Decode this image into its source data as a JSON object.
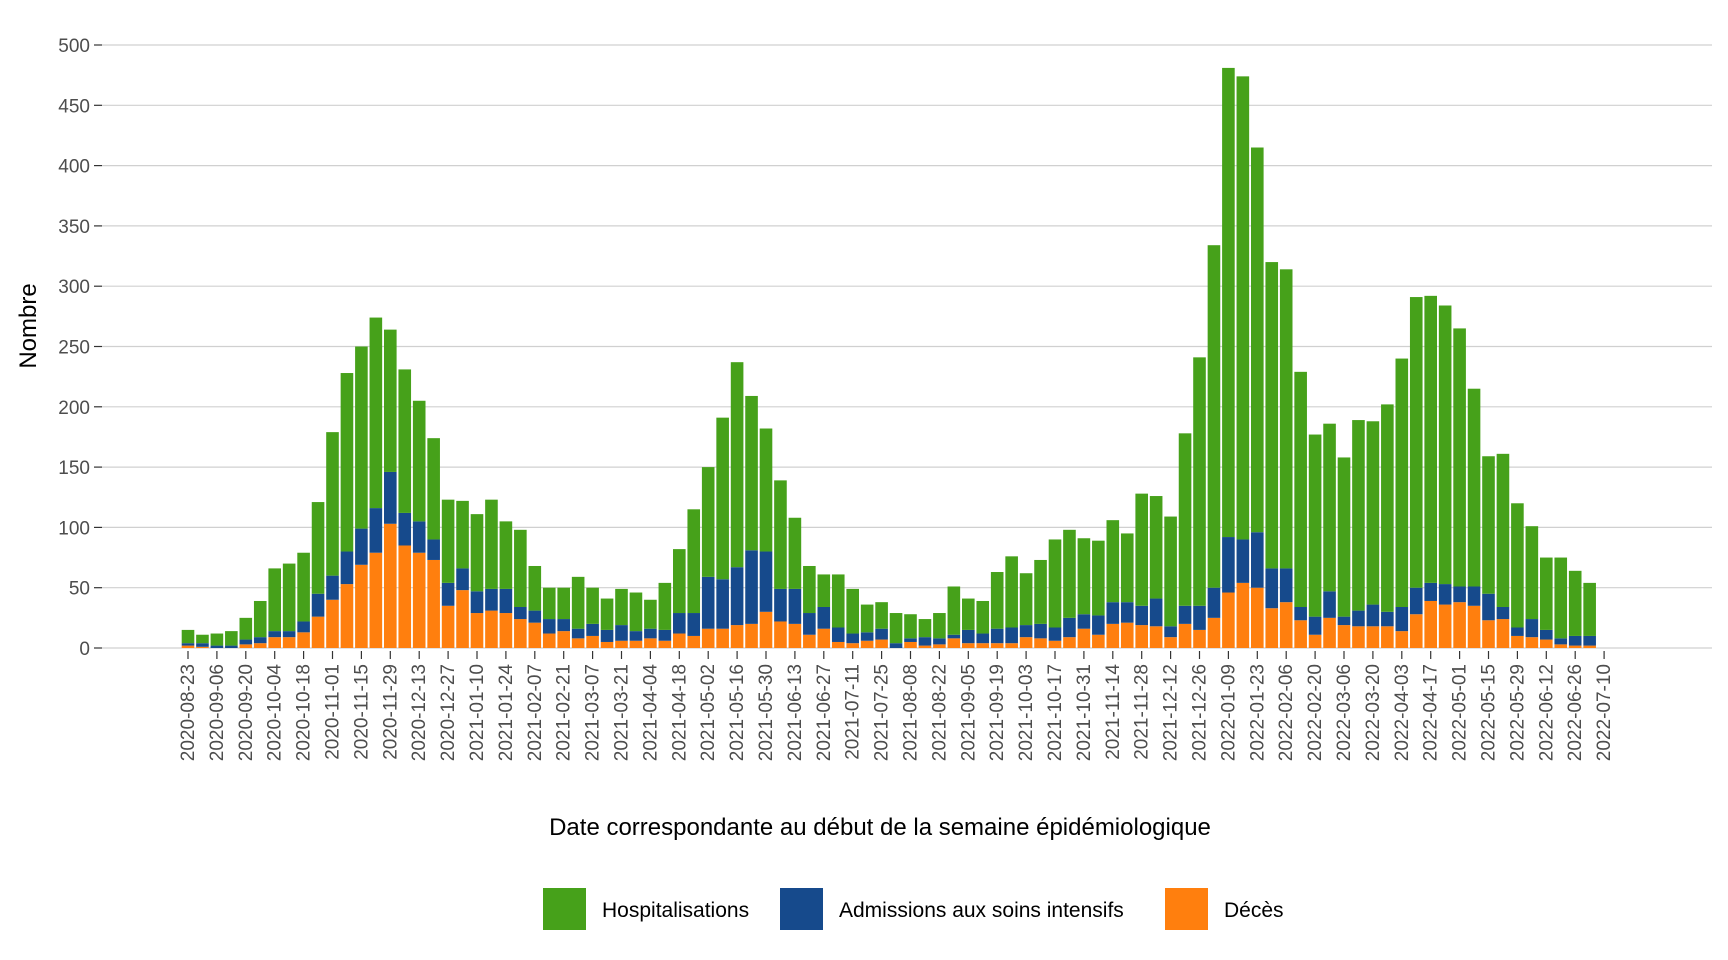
{
  "chart_data": {
    "type": "bar",
    "stacked": true,
    "xlabel": "Date correspondante au début de la semaine épidémiologique",
    "ylabel": "Nombre",
    "ylim": [
      0,
      500
    ],
    "yticks": [
      0,
      50,
      100,
      150,
      200,
      250,
      300,
      350,
      400,
      450,
      500
    ],
    "grid": true,
    "legend_position": "bottom",
    "x_start": "2020-08-23",
    "categories": [
      "2020-08-23",
      "2020-08-30",
      "2020-09-06",
      "2020-09-13",
      "2020-09-20",
      "2020-09-27",
      "2020-10-04",
      "2020-10-11",
      "2020-10-18",
      "2020-10-25",
      "2020-11-01",
      "2020-11-08",
      "2020-11-15",
      "2020-11-22",
      "2020-11-29",
      "2020-12-06",
      "2020-12-13",
      "2020-12-20",
      "2020-12-27",
      "2021-01-03",
      "2021-01-10",
      "2021-01-17",
      "2021-01-24",
      "2021-01-31",
      "2021-02-07",
      "2021-02-14",
      "2021-02-21",
      "2021-02-28",
      "2021-03-07",
      "2021-03-14",
      "2021-03-21",
      "2021-03-28",
      "2021-04-04",
      "2021-04-11",
      "2021-04-18",
      "2021-04-25",
      "2021-05-02",
      "2021-05-09",
      "2021-05-16",
      "2021-05-23",
      "2021-05-30",
      "2021-06-06",
      "2021-06-13",
      "2021-06-20",
      "2021-06-27",
      "2021-07-04",
      "2021-07-11",
      "2021-07-18",
      "2021-07-25",
      "2021-08-01",
      "2021-08-08",
      "2021-08-15",
      "2021-08-22",
      "2021-08-29",
      "2021-09-05",
      "2021-09-12",
      "2021-09-19",
      "2021-09-26",
      "2021-10-03",
      "2021-10-10",
      "2021-10-17",
      "2021-10-24",
      "2021-10-31",
      "2021-11-07",
      "2021-11-14",
      "2021-11-21",
      "2021-11-28",
      "2021-12-05",
      "2021-12-12",
      "2021-12-19",
      "2021-12-26",
      "2022-01-02",
      "2022-01-09",
      "2022-01-16",
      "2022-01-23",
      "2022-01-30",
      "2022-02-06",
      "2022-02-13",
      "2022-02-20",
      "2022-02-27",
      "2022-03-06",
      "2022-03-13",
      "2022-03-20",
      "2022-03-27",
      "2022-04-03",
      "2022-04-10",
      "2022-04-17",
      "2022-04-24",
      "2022-05-01",
      "2022-05-08",
      "2022-05-15",
      "2022-05-22",
      "2022-05-29",
      "2022-06-05",
      "2022-06-12",
      "2022-06-19",
      "2022-06-26",
      "2022-07-03",
      "2022-07-10"
    ],
    "series": [
      {
        "name": "Décès",
        "color": "#ff7f0e",
        "values": [
          2,
          1,
          0,
          0,
          3,
          4,
          9,
          9,
          13,
          26,
          40,
          53,
          69,
          79,
          103,
          85,
          79,
          73,
          35,
          48,
          29,
          31,
          29,
          24,
          21,
          12,
          14,
          8,
          10,
          5,
          6,
          6,
          8,
          6,
          12,
          10,
          16,
          16,
          19,
          20,
          30,
          22,
          20,
          11,
          16,
          5,
          4,
          6,
          7,
          0,
          5,
          2,
          3,
          8,
          4,
          4,
          4,
          4,
          9,
          8,
          6,
          9,
          16,
          11,
          20,
          21,
          19,
          18,
          9,
          20,
          15,
          25,
          46,
          54,
          50,
          33,
          38,
          23,
          11,
          25,
          19,
          18,
          18,
          18,
          14,
          28,
          39,
          36,
          38,
          35,
          23,
          24,
          10,
          9,
          7,
          3,
          2,
          2,
          0
        ]
      },
      {
        "name": "Admissions aux soins intensifs",
        "color": "#164a8c",
        "values": [
          2,
          3,
          2,
          2,
          4,
          5,
          5,
          5,
          9,
          19,
          20,
          27,
          30,
          37,
          43,
          27,
          26,
          17,
          19,
          18,
          18,
          18,
          20,
          10,
          10,
          12,
          10,
          8,
          10,
          10,
          13,
          8,
          8,
          9,
          17,
          19,
          43,
          41,
          48,
          61,
          50,
          27,
          29,
          18,
          18,
          12,
          8,
          7,
          9,
          4,
          3,
          7,
          5,
          3,
          11,
          8,
          12,
          13,
          10,
          12,
          11,
          16,
          12,
          16,
          18,
          17,
          16,
          23,
          9,
          15,
          20,
          25,
          46,
          36,
          46,
          33,
          28,
          11,
          15,
          22,
          7,
          13,
          18,
          12,
          20,
          22,
          15,
          17,
          13,
          16,
          22,
          10,
          7,
          15,
          8,
          5,
          8,
          8,
          0
        ]
      },
      {
        "name": "Hospitalisations",
        "color": "#46a11a",
        "values": [
          11,
          7,
          10,
          12,
          18,
          30,
          52,
          56,
          57,
          76,
          119,
          148,
          151,
          158,
          118,
          119,
          100,
          84,
          69,
          56,
          64,
          74,
          56,
          64,
          37,
          26,
          26,
          43,
          30,
          26,
          30,
          32,
          24,
          39,
          53,
          86,
          91,
          134,
          170,
          128,
          102,
          90,
          59,
          39,
          27,
          44,
          37,
          23,
          22,
          25,
          20,
          15,
          21,
          40,
          26,
          27,
          47,
          59,
          43,
          53,
          73,
          73,
          63,
          62,
          68,
          57,
          93,
          85,
          91,
          143,
          206,
          284,
          389,
          384,
          319,
          254,
          248,
          195,
          151,
          139,
          132,
          158,
          152,
          172,
          206,
          241,
          238,
          231,
          214,
          164,
          114,
          127,
          103,
          77,
          60,
          67,
          54,
          44,
          0
        ]
      }
    ],
    "legend": [
      {
        "label": "Hospitalisations",
        "color": "#46a11a"
      },
      {
        "label": "Admissions aux soins intensifs",
        "color": "#164a8c"
      },
      {
        "label": "Décès",
        "color": "#ff7f0e"
      }
    ]
  }
}
